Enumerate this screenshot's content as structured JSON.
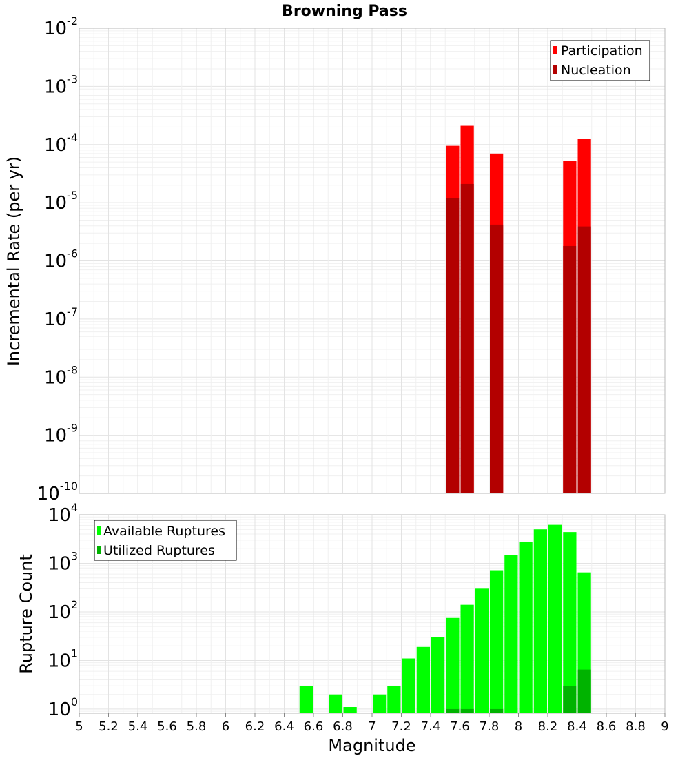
{
  "title": "Browning Pass",
  "colors": {
    "participation": "#ff0000",
    "nucleation": "#b30000",
    "available": "#00ff00",
    "utilized": "#00b300"
  },
  "chart_data": [
    {
      "type": "bar",
      "name": "rates",
      "ylabel": "Incremental Rate (per yr)",
      "yscale": "log",
      "ylim": [
        1e-10,
        0.01
      ],
      "xlim": [
        5,
        9
      ],
      "grid": true,
      "legend_position": "top-right",
      "y_ticks": [
        {
          "base": "10",
          "exp": "-2"
        },
        {
          "base": "10",
          "exp": "-3"
        },
        {
          "base": "10",
          "exp": "-4"
        },
        {
          "base": "10",
          "exp": "-5"
        },
        {
          "base": "10",
          "exp": "-6"
        },
        {
          "base": "10",
          "exp": "-7"
        },
        {
          "base": "10",
          "exp": "-8"
        },
        {
          "base": "10",
          "exp": "-9"
        },
        {
          "base": "10",
          "exp": "-10"
        }
      ],
      "series": [
        {
          "name": "Participation",
          "x": [
            7.55,
            7.65,
            7.85,
            8.35,
            8.45
          ],
          "values": [
            9.5e-05,
            0.00021,
            7e-05,
            5.3e-05,
            0.000125
          ]
        },
        {
          "name": "Nucleation",
          "x": [
            7.55,
            7.65,
            7.85,
            8.35,
            8.45
          ],
          "values": [
            1.2e-05,
            2.1e-05,
            4.2e-06,
            1.8e-06,
            3.9e-06
          ]
        }
      ]
    },
    {
      "type": "bar",
      "name": "counts",
      "xlabel": "Magnitude",
      "ylabel": "Rupture Count",
      "yscale": "log",
      "ylim": [
        0.82,
        10000
      ],
      "xlim": [
        5,
        9
      ],
      "grid": true,
      "legend_position": "top-left",
      "x_ticks": [
        "5",
        "5.2",
        "5.4",
        "5.6",
        "5.8",
        "6",
        "6.2",
        "6.4",
        "6.6",
        "6.8",
        "7",
        "7.2",
        "7.4",
        "7.6",
        "7.8",
        "8",
        "8.2",
        "8.4",
        "8.6",
        "8.8",
        "9"
      ],
      "y_ticks": [
        {
          "base": "10",
          "exp": "4"
        },
        {
          "base": "10",
          "exp": "3"
        },
        {
          "base": "10",
          "exp": "2"
        },
        {
          "base": "10",
          "exp": "1"
        },
        {
          "base": "10",
          "exp": "0"
        }
      ],
      "series": [
        {
          "name": "Available Ruptures",
          "x": [
            6.55,
            6.75,
            6.85,
            7.05,
            7.15,
            7.25,
            7.35,
            7.45,
            7.55,
            7.65,
            7.75,
            7.85,
            7.95,
            8.05,
            8.15,
            8.25,
            8.35,
            8.45
          ],
          "values": [
            3,
            2,
            1.1,
            2,
            3,
            11,
            19,
            30,
            75,
            140,
            300,
            720,
            1500,
            2800,
            5000,
            6200,
            4400,
            650
          ]
        },
        {
          "name": "Utilized Ruptures",
          "x": [
            7.55,
            7.65,
            7.85,
            8.35,
            8.45
          ],
          "values": [
            1,
            1,
            1,
            3,
            6.5
          ]
        }
      ]
    }
  ]
}
